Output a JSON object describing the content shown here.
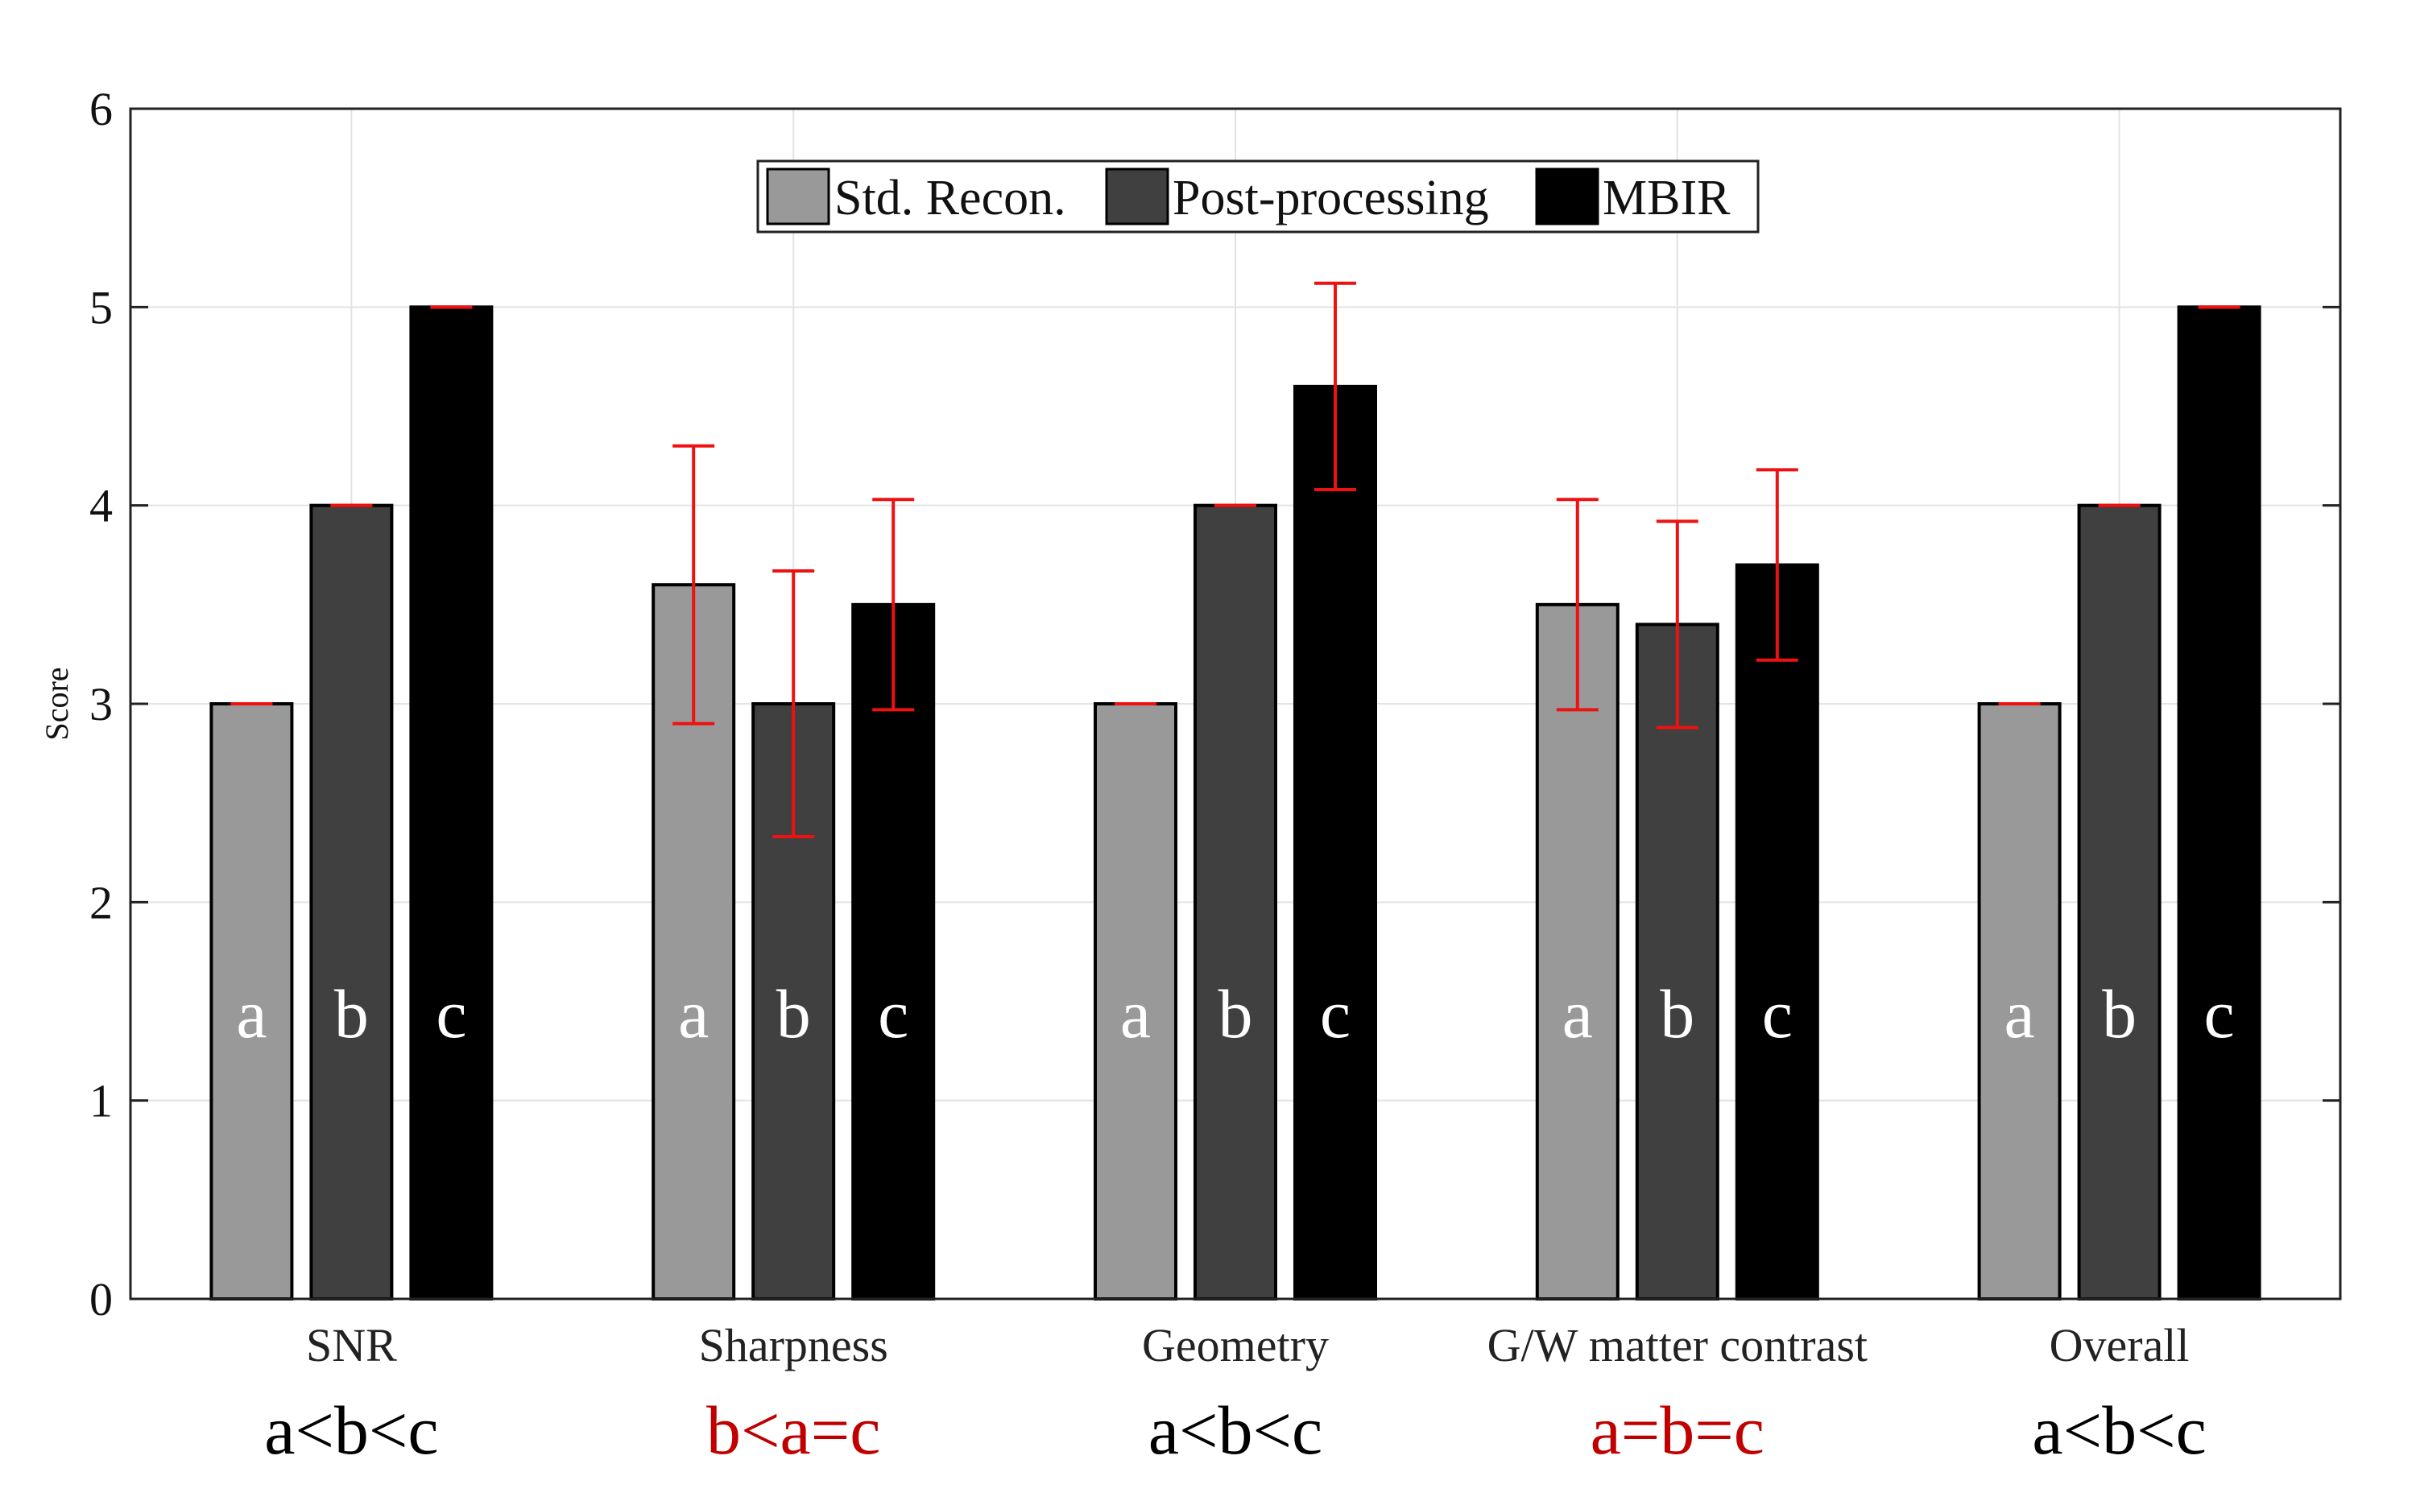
{
  "chart_data": {
    "type": "bar",
    "title": "",
    "xlabel": "",
    "ylabel": "Score",
    "ylim": [
      0,
      6
    ],
    "yticks": [
      0,
      1,
      2,
      3,
      4,
      5,
      6
    ],
    "grid": true,
    "legend_position": "top-center",
    "categories": [
      "SNR",
      "Sharpness",
      "Geometry",
      "G/W matter contrast",
      "Overall"
    ],
    "series": [
      {
        "name": "Std. Recon.",
        "color": "#999999",
        "bar_label": "a",
        "values": [
          3.0,
          3.6,
          3.0,
          3.5,
          3.0
        ],
        "errors": [
          0.0,
          0.7,
          0.0,
          0.53,
          0.0
        ]
      },
      {
        "name": "Post-processing",
        "color": "#404040",
        "bar_label": "b",
        "values": [
          4.0,
          3.0,
          4.0,
          3.4,
          4.0
        ],
        "errors": [
          0.0,
          0.67,
          0.0,
          0.52,
          0.0
        ]
      },
      {
        "name": "MBIR",
        "color": "#000000",
        "bar_label": "c",
        "values": [
          5.0,
          3.5,
          4.6,
          3.7,
          5.0
        ],
        "errors": [
          0.0,
          0.53,
          0.52,
          0.48,
          0.0
        ]
      }
    ],
    "error_bar_color": "#ee1111",
    "significance": [
      {
        "text": "a<b<c",
        "color": "#000000"
      },
      {
        "text": "b<a=c",
        "color": "#c00000"
      },
      {
        "text": "a<b<c",
        "color": "#000000"
      },
      {
        "text": "a=b=c",
        "color": "#c00000"
      },
      {
        "text": "a<b<c",
        "color": "#000000"
      }
    ]
  }
}
